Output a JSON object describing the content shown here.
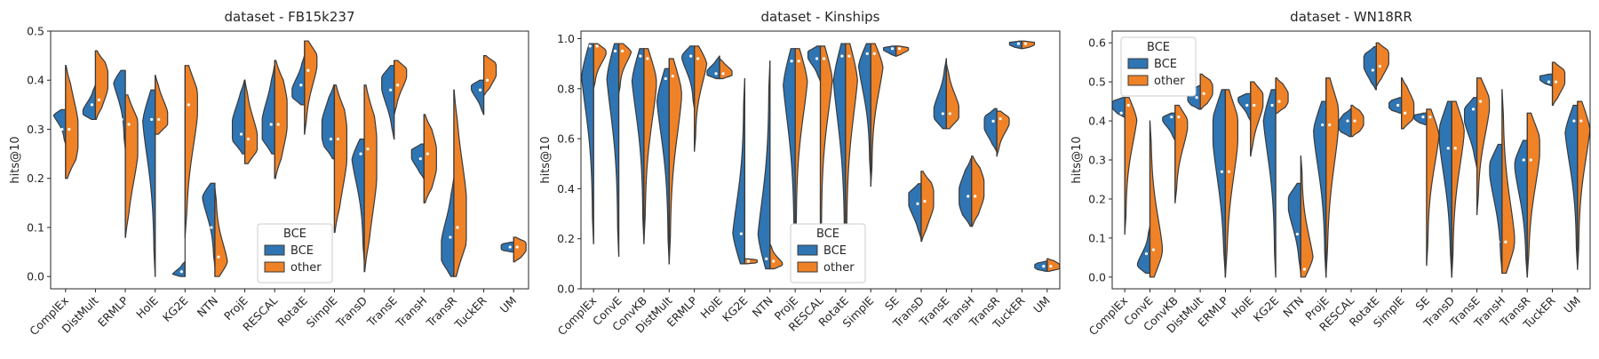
{
  "colors": {
    "BCE": "#2f75b3",
    "other": "#ef8227"
  },
  "chart_data": [
    {
      "type": "violin",
      "title": "dataset - FB15k237",
      "ylabel": "hits@10",
      "ylim": [
        -0.025,
        0.5
      ],
      "yticks": [
        0.0,
        0.1,
        0.2,
        0.3,
        0.4,
        0.5
      ],
      "ytick_labels": [
        "0.0",
        "0.1",
        "0.2",
        "0.3",
        "0.4",
        "0.5"
      ],
      "legend": {
        "title": "BCE",
        "entries": [
          "BCE",
          "other"
        ],
        "position": "lower-center"
      },
      "categories": [
        "ComplEx",
        "DistMult",
        "ERMLP",
        "HolE",
        "KG2E",
        "NTN",
        "ProjE",
        "RESCAL",
        "RotatE",
        "SimplE",
        "TransD",
        "TransE",
        "TransH",
        "TransR",
        "TuckER",
        "UM"
      ],
      "series": [
        {
          "name": "BCE",
          "values": [
            {
              "min": 0.27,
              "max": 0.34,
              "median": 0.3,
              "mode": 0.34
            },
            {
              "min": 0.32,
              "max": 0.39,
              "median": 0.35,
              "mode": 0.33
            },
            {
              "min": 0.26,
              "max": 0.42,
              "median": 0.32,
              "mode": 0.42
            },
            {
              "min": 0.0,
              "max": 0.38,
              "median": 0.32,
              "mode": 0.36
            },
            {
              "min": 0.0,
              "max": 0.03,
              "median": 0.01,
              "mode": 0.0
            },
            {
              "min": 0.02,
              "max": 0.19,
              "median": 0.1,
              "mode": 0.18
            },
            {
              "min": 0.25,
              "max": 0.4,
              "median": 0.29,
              "mode": 0.3
            },
            {
              "min": 0.25,
              "max": 0.43,
              "median": 0.31,
              "mode": 0.3
            },
            {
              "min": 0.35,
              "max": 0.45,
              "median": 0.39,
              "mode": 0.37
            },
            {
              "min": 0.24,
              "max": 0.39,
              "median": 0.28,
              "mode": 0.3
            },
            {
              "min": 0.03,
              "max": 0.28,
              "median": 0.25,
              "mode": 0.27
            },
            {
              "min": 0.28,
              "max": 0.43,
              "median": 0.38,
              "mode": 0.4
            },
            {
              "min": 0.2,
              "max": 0.27,
              "median": 0.24,
              "mode": 0.25
            },
            {
              "min": 0.0,
              "max": 0.2,
              "median": 0.08,
              "mode": 0.05
            },
            {
              "min": 0.33,
              "max": 0.4,
              "median": 0.38,
              "mode": 0.39
            },
            {
              "min": 0.05,
              "max": 0.07,
              "median": 0.06,
              "mode": 0.06
            }
          ]
        },
        {
          "name": "other",
          "values": [
            {
              "min": 0.2,
              "max": 0.43,
              "median": 0.3,
              "mode": 0.29
            },
            {
              "min": 0.32,
              "max": 0.46,
              "median": 0.36,
              "mode": 0.4
            },
            {
              "min": 0.08,
              "max": 0.37,
              "median": 0.31,
              "mode": 0.28
            },
            {
              "min": 0.29,
              "max": 0.41,
              "median": 0.32,
              "mode": 0.32
            },
            {
              "min": 0.08,
              "max": 0.43,
              "median": 0.35,
              "mode": 0.37
            },
            {
              "min": 0.0,
              "max": 0.18,
              "median": 0.04,
              "mode": 0.01
            },
            {
              "min": 0.23,
              "max": 0.4,
              "median": 0.28,
              "mode": 0.27
            },
            {
              "min": 0.2,
              "max": 0.44,
              "median": 0.31,
              "mode": 0.33
            },
            {
              "min": 0.29,
              "max": 0.48,
              "median": 0.42,
              "mode": 0.45
            },
            {
              "min": 0.09,
              "max": 0.39,
              "median": 0.28,
              "mode": 0.27
            },
            {
              "min": 0.01,
              "max": 0.39,
              "median": 0.26,
              "mode": 0.24
            },
            {
              "min": 0.33,
              "max": 0.44,
              "median": 0.39,
              "mode": 0.42
            },
            {
              "min": 0.15,
              "max": 0.33,
              "median": 0.25,
              "mode": 0.24
            },
            {
              "min": 0.0,
              "max": 0.38,
              "median": 0.1,
              "mode": 0.12
            },
            {
              "min": 0.37,
              "max": 0.45,
              "median": 0.4,
              "mode": 0.42
            },
            {
              "min": 0.03,
              "max": 0.08,
              "median": 0.06,
              "mode": 0.06
            }
          ]
        }
      ]
    },
    {
      "type": "violin",
      "title": "dataset - Kinships",
      "ylabel": "hits@10",
      "ylim": [
        0.0,
        1.03
      ],
      "yticks": [
        0.0,
        0.2,
        0.4,
        0.6,
        0.8,
        1.0
      ],
      "ytick_labels": [
        "0.0",
        "0.2",
        "0.4",
        "0.6",
        "0.8",
        "1.0"
      ],
      "legend": {
        "title": "BCE",
        "entries": [
          "BCE",
          "other"
        ],
        "position": "lower-center"
      },
      "categories": [
        "ComplEx",
        "ConvE",
        "ConvKB",
        "DistMult",
        "ERMLP",
        "HolE",
        "KG2E",
        "NTN",
        "ProjE",
        "RESCAL",
        "RotatE",
        "SimplE",
        "SE",
        "TransD",
        "TransE",
        "TransH",
        "TransR",
        "TuckER",
        "UM"
      ],
      "series": [
        {
          "name": "BCE",
          "values": [
            {
              "min": 0.18,
              "max": 0.98,
              "median": 0.97,
              "mode": 0.96
            },
            {
              "min": 0.13,
              "max": 0.98,
              "median": 0.95,
              "mode": 0.96
            },
            {
              "min": 0.18,
              "max": 0.96,
              "median": 0.93,
              "mode": 0.94
            },
            {
              "min": 0.1,
              "max": 0.88,
              "median": 0.84,
              "mode": 0.85
            },
            {
              "min": 0.72,
              "max": 0.97,
              "median": 0.93,
              "mode": 0.95
            },
            {
              "min": 0.84,
              "max": 0.93,
              "median": 0.86,
              "mode": 0.86
            },
            {
              "min": 0.1,
              "max": 0.84,
              "median": 0.22,
              "mode": 0.12
            },
            {
              "min": 0.08,
              "max": 0.91,
              "median": 0.12,
              "mode": 0.1
            },
            {
              "min": 0.08,
              "max": 0.96,
              "median": 0.91,
              "mode": 0.94
            },
            {
              "min": 0.83,
              "max": 0.97,
              "median": 0.92,
              "mode": 0.94
            },
            {
              "min": 0.08,
              "max": 0.98,
              "median": 0.93,
              "mode": 0.95
            },
            {
              "min": 0.44,
              "max": 0.98,
              "median": 0.94,
              "mode": 0.96
            },
            {
              "min": 0.93,
              "max": 0.97,
              "median": 0.96,
              "mode": 0.96
            },
            {
              "min": 0.2,
              "max": 0.42,
              "median": 0.34,
              "mode": 0.36
            },
            {
              "min": 0.64,
              "max": 0.92,
              "median": 0.7,
              "mode": 0.69
            },
            {
              "min": 0.25,
              "max": 0.52,
              "median": 0.37,
              "mode": 0.37
            },
            {
              "min": 0.55,
              "max": 0.72,
              "median": 0.67,
              "mode": 0.66
            },
            {
              "min": 0.96,
              "max": 0.99,
              "median": 0.98,
              "mode": 0.98
            },
            {
              "min": 0.07,
              "max": 0.11,
              "median": 0.09,
              "mode": 0.09
            }
          ]
        },
        {
          "name": "other",
          "values": [
            {
              "min": 0.8,
              "max": 0.98,
              "median": 0.97,
              "mode": 0.96
            },
            {
              "min": 0.78,
              "max": 0.98,
              "median": 0.95,
              "mode": 0.97
            },
            {
              "min": 0.19,
              "max": 0.96,
              "median": 0.92,
              "mode": 0.9
            },
            {
              "min": 0.1,
              "max": 0.92,
              "median": 0.85,
              "mode": 0.86
            },
            {
              "min": 0.55,
              "max": 0.97,
              "median": 0.92,
              "mode": 0.95
            },
            {
              "min": 0.84,
              "max": 0.92,
              "median": 0.86,
              "mode": 0.86
            },
            {
              "min": 0.1,
              "max": 0.12,
              "median": 0.11,
              "mode": 0.11
            },
            {
              "min": 0.08,
              "max": 0.18,
              "median": 0.11,
              "mode": 0.09
            },
            {
              "min": 0.17,
              "max": 0.96,
              "median": 0.91,
              "mode": 0.93
            },
            {
              "min": 0.16,
              "max": 0.97,
              "median": 0.92,
              "mode": 0.95
            },
            {
              "min": 0.1,
              "max": 0.98,
              "median": 0.93,
              "mode": 0.96
            },
            {
              "min": 0.41,
              "max": 0.98,
              "median": 0.94,
              "mode": 0.96
            },
            {
              "min": 0.93,
              "max": 0.97,
              "median": 0.96,
              "mode": 0.96
            },
            {
              "min": 0.19,
              "max": 0.47,
              "median": 0.35,
              "mode": 0.36
            },
            {
              "min": 0.64,
              "max": 0.9,
              "median": 0.7,
              "mode": 0.7
            },
            {
              "min": 0.25,
              "max": 0.53,
              "median": 0.37,
              "mode": 0.4
            },
            {
              "min": 0.53,
              "max": 0.71,
              "median": 0.68,
              "mode": 0.68
            },
            {
              "min": 0.96,
              "max": 0.99,
              "median": 0.98,
              "mode": 0.98
            },
            {
              "min": 0.07,
              "max": 0.12,
              "median": 0.09,
              "mode": 0.09
            }
          ]
        }
      ]
    },
    {
      "type": "violin",
      "title": "dataset - WN18RR",
      "ylabel": "hits@10",
      "ylim": [
        -0.03,
        0.63
      ],
      "yticks": [
        0.0,
        0.1,
        0.2,
        0.3,
        0.4,
        0.5,
        0.6
      ],
      "ytick_labels": [
        "0.0",
        "0.1",
        "0.2",
        "0.3",
        "0.4",
        "0.5",
        "0.6"
      ],
      "legend": {
        "title": "BCE",
        "entries": [
          "BCE",
          "other"
        ],
        "position": "upper-left"
      },
      "categories": [
        "ComplEx",
        "ConvE",
        "ConvKB",
        "DistMult",
        "ERMLP",
        "HolE",
        "KG2E",
        "NTN",
        "ProjE",
        "RESCAL",
        "RotatE",
        "SimplE",
        "SE",
        "TransD",
        "TransE",
        "TransH",
        "TransR",
        "TuckER",
        "UM"
      ],
      "series": [
        {
          "name": "BCE",
          "values": [
            {
              "min": 0.41,
              "max": 0.46,
              "median": 0.42,
              "mode": 0.44
            },
            {
              "min": 0.01,
              "max": 0.13,
              "median": 0.06,
              "mode": 0.02
            },
            {
              "min": 0.35,
              "max": 0.42,
              "median": 0.41,
              "mode": 0.41
            },
            {
              "min": 0.43,
              "max": 0.49,
              "median": 0.46,
              "mode": 0.46
            },
            {
              "min": 0.0,
              "max": 0.48,
              "median": 0.27,
              "mode": 0.4
            },
            {
              "min": 0.4,
              "max": 0.47,
              "median": 0.44,
              "mode": 0.46
            },
            {
              "min": 0.0,
              "max": 0.48,
              "median": 0.44,
              "mode": 0.46
            },
            {
              "min": 0.01,
              "max": 0.24,
              "median": 0.11,
              "mode": 0.2
            },
            {
              "min": 0.0,
              "max": 0.45,
              "median": 0.39,
              "mode": 0.42
            },
            {
              "min": 0.36,
              "max": 0.43,
              "median": 0.4,
              "mode": 0.39
            },
            {
              "min": 0.48,
              "max": 0.59,
              "median": 0.53,
              "mode": 0.55
            },
            {
              "min": 0.42,
              "max": 0.46,
              "median": 0.44,
              "mode": 0.44
            },
            {
              "min": 0.39,
              "max": 0.42,
              "median": 0.41,
              "mode": 0.41
            },
            {
              "min": 0.0,
              "max": 0.45,
              "median": 0.33,
              "mode": 0.4
            },
            {
              "min": 0.28,
              "max": 0.46,
              "median": 0.43,
              "mode": 0.42
            },
            {
              "min": 0.01,
              "max": 0.34,
              "median": 0.09,
              "mode": 0.3
            },
            {
              "min": 0.0,
              "max": 0.35,
              "median": 0.3,
              "mode": 0.32
            },
            {
              "min": 0.49,
              "max": 0.52,
              "median": 0.5,
              "mode": 0.51
            },
            {
              "min": 0.02,
              "max": 0.44,
              "median": 0.4,
              "mode": 0.42
            }
          ]
        },
        {
          "name": "other",
          "values": [
            {
              "min": 0.11,
              "max": 0.46,
              "median": 0.44,
              "mode": 0.45
            },
            {
              "min": 0.0,
              "max": 0.4,
              "median": 0.07,
              "mode": 0.03
            },
            {
              "min": 0.19,
              "max": 0.44,
              "median": 0.41,
              "mode": 0.41
            },
            {
              "min": 0.43,
              "max": 0.52,
              "median": 0.47,
              "mode": 0.48
            },
            {
              "min": 0.0,
              "max": 0.48,
              "median": 0.27,
              "mode": 0.4
            },
            {
              "min": 0.31,
              "max": 0.5,
              "median": 0.44,
              "mode": 0.46
            },
            {
              "min": 0.42,
              "max": 0.51,
              "median": 0.45,
              "mode": 0.46
            },
            {
              "min": 0.0,
              "max": 0.31,
              "median": 0.02,
              "mode": 0.01
            },
            {
              "min": 0.0,
              "max": 0.51,
              "median": 0.39,
              "mode": 0.44
            },
            {
              "min": 0.36,
              "max": 0.44,
              "median": 0.4,
              "mode": 0.4
            },
            {
              "min": 0.49,
              "max": 0.6,
              "median": 0.54,
              "mode": 0.56
            },
            {
              "min": 0.38,
              "max": 0.51,
              "median": 0.42,
              "mode": 0.43
            },
            {
              "min": 0.03,
              "max": 0.43,
              "median": 0.41,
              "mode": 0.41
            },
            {
              "min": 0.0,
              "max": 0.45,
              "median": 0.33,
              "mode": 0.42
            },
            {
              "min": 0.16,
              "max": 0.51,
              "median": 0.45,
              "mode": 0.47
            },
            {
              "min": 0.01,
              "max": 0.48,
              "median": 0.09,
              "mode": 0.05
            },
            {
              "min": 0.0,
              "max": 0.42,
              "median": 0.3,
              "mode": 0.36
            },
            {
              "min": 0.44,
              "max": 0.55,
              "median": 0.5,
              "mode": 0.51
            },
            {
              "min": 0.02,
              "max": 0.45,
              "median": 0.4,
              "mode": 0.43
            }
          ]
        }
      ]
    }
  ]
}
